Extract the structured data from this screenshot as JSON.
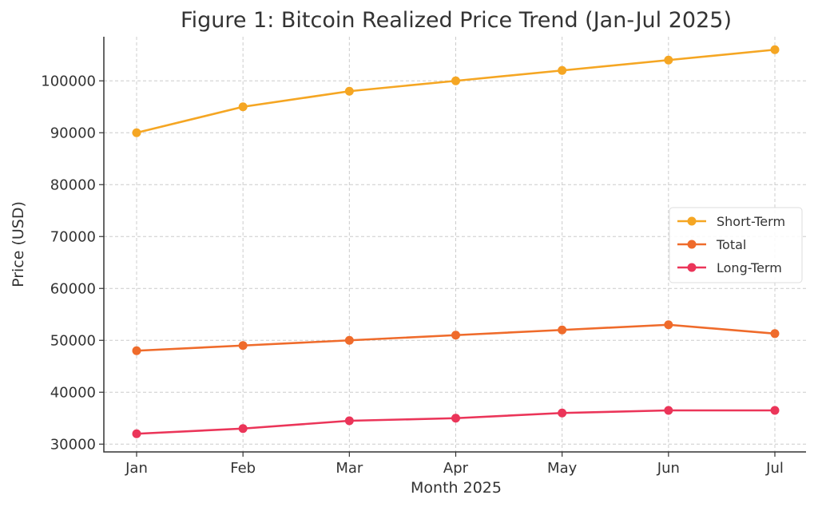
{
  "chart_data": {
    "type": "line",
    "title": "Figure 1: Bitcoin Realized Price Trend (Jan-Jul 2025)",
    "xlabel": "Month 2025",
    "ylabel": "Price (USD)",
    "categories": [
      "Jan",
      "Feb",
      "Mar",
      "Apr",
      "May",
      "Jun",
      "Jul"
    ],
    "ylim": [
      28500,
      108500
    ],
    "yticks": [
      30000,
      40000,
      50000,
      60000,
      70000,
      80000,
      90000,
      100000
    ],
    "grid": true,
    "legend_position": "center-right",
    "series": [
      {
        "name": "Short-Term",
        "color": "#f5a623",
        "values": [
          90000,
          95000,
          98000,
          100000,
          102000,
          104000,
          106000
        ]
      },
      {
        "name": "Total",
        "color": "#ef6b2b",
        "values": [
          48000,
          49000,
          50000,
          51000,
          52000,
          53000,
          51300
        ]
      },
      {
        "name": "Long-Term",
        "color": "#eb3559",
        "values": [
          32000,
          33000,
          34500,
          35000,
          36000,
          36500,
          36500
        ]
      }
    ]
  }
}
